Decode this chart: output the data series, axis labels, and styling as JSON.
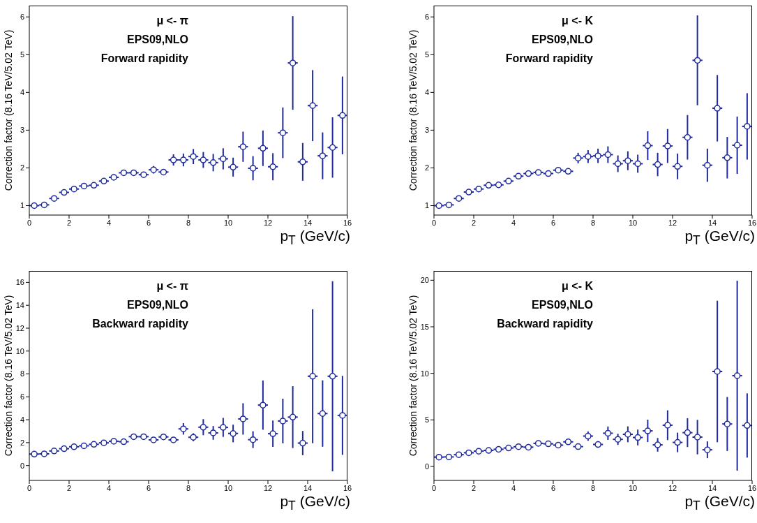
{
  "chart_data": [
    {
      "type": "scatter",
      "xlabel": "p$_{T}$ (GeV/c)",
      "ylabel": "Correction factor (8.16 TeV/5.02 TeV)",
      "annotations": [
        "μ <- π",
        "EPS09,NLO",
        "Forward rapidity"
      ],
      "marker": "circle",
      "xlim": [
        0,
        16
      ],
      "xticks": [
        0,
        2,
        4,
        6,
        8,
        10,
        12,
        14,
        16
      ],
      "ylim": [
        0.75,
        6.3
      ],
      "yticks": [
        1,
        2,
        3,
        4,
        5,
        6
      ],
      "x": [
        0.25,
        0.75,
        1.25,
        1.75,
        2.25,
        2.75,
        3.25,
        3.75,
        4.25,
        4.75,
        5.25,
        5.75,
        6.25,
        6.75,
        7.25,
        7.75,
        8.25,
        8.75,
        9.25,
        9.75,
        10.25,
        10.75,
        11.25,
        11.75,
        12.25,
        12.75,
        13.25,
        13.75,
        14.25,
        14.75,
        15.25,
        15.75
      ],
      "series": [
        {
          "color": "#1f2a9c",
          "values": [
            1.0,
            1.02,
            1.19,
            1.35,
            1.44,
            1.52,
            1.54,
            1.65,
            1.75,
            1.87,
            1.87,
            1.82,
            1.95,
            1.89,
            2.21,
            2.21,
            2.3,
            2.21,
            2.14,
            2.24,
            2.02,
            2.56,
            1.99,
            2.52,
            2.03,
            2.93,
            4.78,
            2.16,
            3.65,
            2.32,
            2.54,
            3.39
          ],
          "errors": [
            null,
            null,
            null,
            null,
            null,
            null,
            null,
            null,
            null,
            null,
            null,
            0.05,
            0.1,
            0.08,
            0.15,
            0.17,
            0.2,
            0.21,
            0.23,
            0.28,
            0.25,
            0.4,
            0.32,
            0.47,
            0.36,
            0.67,
            1.24,
            0.5,
            0.94,
            0.62,
            0.8,
            1.03
          ],
          "xerrors": [
            0.25,
            0.25,
            0.25,
            0.25,
            0.25,
            0.25,
            0.25,
            0.25,
            0.25,
            0.25,
            0.25,
            0.25,
            0.25,
            0.25,
            0.25,
            0.25,
            0.25,
            0.25,
            0.25,
            0.25,
            0.25,
            0.25,
            0.25,
            0.25,
            0.25,
            0.25,
            0.25,
            0.25,
            0.25,
            0.25,
            0.25,
            0.25
          ]
        }
      ]
    },
    {
      "type": "scatter",
      "xlabel": "p$_{T}$ (GeV/c)",
      "ylabel": "Correction factor (8.16 TeV/5.02 TeV)",
      "annotations": [
        "μ <- K",
        "EPS09,NLO",
        "Forward rapidity"
      ],
      "marker": "circle",
      "xlim": [
        0,
        16
      ],
      "xticks": [
        0,
        2,
        4,
        6,
        8,
        10,
        12,
        14,
        16
      ],
      "ylim": [
        0.75,
        6.3
      ],
      "yticks": [
        1,
        2,
        3,
        4,
        5,
        6
      ],
      "x": [
        0.25,
        0.75,
        1.25,
        1.75,
        2.25,
        2.75,
        3.25,
        3.75,
        4.25,
        4.75,
        5.25,
        5.75,
        6.25,
        6.75,
        7.25,
        7.75,
        8.25,
        8.75,
        9.25,
        9.75,
        10.25,
        10.75,
        11.25,
        11.75,
        12.25,
        12.75,
        13.25,
        13.75,
        14.25,
        14.75,
        15.25,
        15.75
      ],
      "series": [
        {
          "color": "#1f2a9c",
          "values": [
            1.0,
            1.02,
            1.19,
            1.36,
            1.44,
            1.54,
            1.55,
            1.65,
            1.78,
            1.85,
            1.88,
            1.85,
            1.94,
            1.91,
            2.26,
            2.3,
            2.32,
            2.35,
            2.11,
            2.19,
            2.11,
            2.59,
            2.09,
            2.58,
            2.04,
            2.81,
            4.85,
            2.07,
            3.58,
            2.27,
            2.6,
            3.1
          ],
          "errors": [
            null,
            null,
            null,
            null,
            null,
            null,
            null,
            null,
            null,
            null,
            null,
            null,
            0.07,
            0.07,
            0.14,
            0.17,
            0.19,
            0.22,
            0.22,
            0.25,
            0.24,
            0.38,
            0.31,
            0.45,
            0.34,
            0.59,
            1.19,
            0.44,
            0.88,
            0.55,
            0.76,
            0.88
          ],
          "xerrors": [
            0.25,
            0.25,
            0.25,
            0.25,
            0.25,
            0.25,
            0.25,
            0.25,
            0.25,
            0.25,
            0.25,
            0.25,
            0.25,
            0.25,
            0.25,
            0.25,
            0.25,
            0.25,
            0.25,
            0.25,
            0.25,
            0.25,
            0.25,
            0.25,
            0.25,
            0.25,
            0.25,
            0.25,
            0.25,
            0.25,
            0.25,
            0.25
          ]
        }
      ]
    },
    {
      "type": "scatter",
      "xlabel": "p$_{T}$ (GeV/c)",
      "ylabel": "Correction factor (8.16 TeV/5.02 TeV)",
      "annotations": [
        "μ <- π",
        "EPS09,NLO",
        "Backward rapidity"
      ],
      "marker": "circle",
      "xlim": [
        0,
        16
      ],
      "xticks": [
        0,
        2,
        4,
        6,
        8,
        10,
        12,
        14,
        16
      ],
      "ylim": [
        -1.3,
        17
      ],
      "yticks": [
        0,
        2,
        4,
        6,
        8,
        10,
        12,
        14,
        16
      ],
      "x": [
        0.25,
        0.75,
        1.25,
        1.75,
        2.25,
        2.75,
        3.25,
        3.75,
        4.25,
        4.75,
        5.25,
        5.75,
        6.25,
        6.75,
        7.25,
        7.75,
        8.25,
        8.75,
        9.25,
        9.75,
        10.25,
        10.75,
        11.25,
        11.75,
        12.25,
        12.75,
        13.25,
        13.75,
        14.25,
        14.75,
        15.25,
        15.75
      ],
      "series": [
        {
          "color": "#1f2a9c",
          "values": [
            1.0,
            1.02,
            1.27,
            1.47,
            1.64,
            1.72,
            1.85,
            1.98,
            2.12,
            2.08,
            2.52,
            2.52,
            2.24,
            2.5,
            2.24,
            3.2,
            2.47,
            3.35,
            2.85,
            3.33,
            2.8,
            4.07,
            2.26,
            5.28,
            2.78,
            3.89,
            4.23,
            1.96,
            7.8,
            4.54,
            7.8,
            4.38
          ],
          "errors": [
            null,
            null,
            null,
            null,
            null,
            null,
            null,
            null,
            null,
            null,
            null,
            null,
            null,
            null,
            null,
            0.5,
            0.35,
            0.7,
            0.6,
            0.83,
            0.77,
            1.37,
            0.73,
            2.15,
            1.15,
            1.95,
            2.7,
            1.06,
            5.85,
            2.9,
            8.3,
            3.45
          ],
          "xerrors": [
            0.25,
            0.25,
            0.25,
            0.25,
            0.25,
            0.25,
            0.25,
            0.25,
            0.25,
            0.25,
            0.25,
            0.25,
            0.25,
            0.25,
            0.25,
            0.25,
            0.25,
            0.25,
            0.25,
            0.25,
            0.25,
            0.25,
            0.25,
            0.25,
            0.25,
            0.25,
            0.25,
            0.25,
            0.25,
            0.25,
            0.25,
            0.25
          ]
        }
      ]
    },
    {
      "type": "scatter",
      "xlabel": "p$_{T}$ (GeV/c)",
      "ylabel": "Correction factor (8.16 TeV/5.02 TeV)",
      "annotations": [
        "μ <- K",
        "EPS09,NLO",
        "Backward rapidity"
      ],
      "marker": "circle",
      "xlim": [
        0,
        16
      ],
      "xticks": [
        0,
        2,
        4,
        6,
        8,
        10,
        12,
        14,
        16
      ],
      "ylim": [
        -1.5,
        21
      ],
      "yticks": [
        0,
        5,
        10,
        15,
        20
      ],
      "x": [
        0.25,
        0.75,
        1.25,
        1.75,
        2.25,
        2.75,
        3.25,
        3.75,
        4.25,
        4.75,
        5.25,
        5.75,
        6.25,
        6.75,
        7.25,
        7.75,
        8.25,
        8.75,
        9.25,
        9.75,
        10.25,
        10.75,
        11.25,
        11.75,
        12.25,
        12.75,
        13.25,
        13.75,
        14.25,
        14.75,
        15.25,
        15.75
      ],
      "series": [
        {
          "color": "#1f2a9c",
          "values": [
            1.0,
            1.02,
            1.26,
            1.47,
            1.64,
            1.72,
            1.84,
            1.98,
            2.12,
            2.07,
            2.48,
            2.43,
            2.29,
            2.64,
            2.13,
            3.26,
            2.36,
            3.57,
            2.91,
            3.45,
            3.11,
            3.82,
            2.32,
            4.43,
            2.58,
            3.63,
            3.15,
            1.79,
            10.2,
            4.56,
            9.75,
            4.4
          ],
          "errors": [
            null,
            null,
            null,
            null,
            null,
            null,
            null,
            null,
            null,
            null,
            null,
            null,
            null,
            null,
            null,
            0.5,
            0.35,
            0.72,
            0.6,
            0.85,
            0.85,
            1.2,
            0.73,
            1.6,
            1.05,
            1.55,
            1.85,
            0.9,
            7.6,
            2.9,
            10.2,
            3.45
          ],
          "xerrors": [
            0.25,
            0.25,
            0.25,
            0.25,
            0.25,
            0.25,
            0.25,
            0.25,
            0.25,
            0.25,
            0.25,
            0.25,
            0.25,
            0.25,
            0.25,
            0.25,
            0.25,
            0.25,
            0.25,
            0.25,
            0.25,
            0.25,
            0.25,
            0.25,
            0.25,
            0.25,
            0.25,
            0.25,
            0.25,
            0.25,
            0.25,
            0.25
          ]
        }
      ]
    }
  ]
}
